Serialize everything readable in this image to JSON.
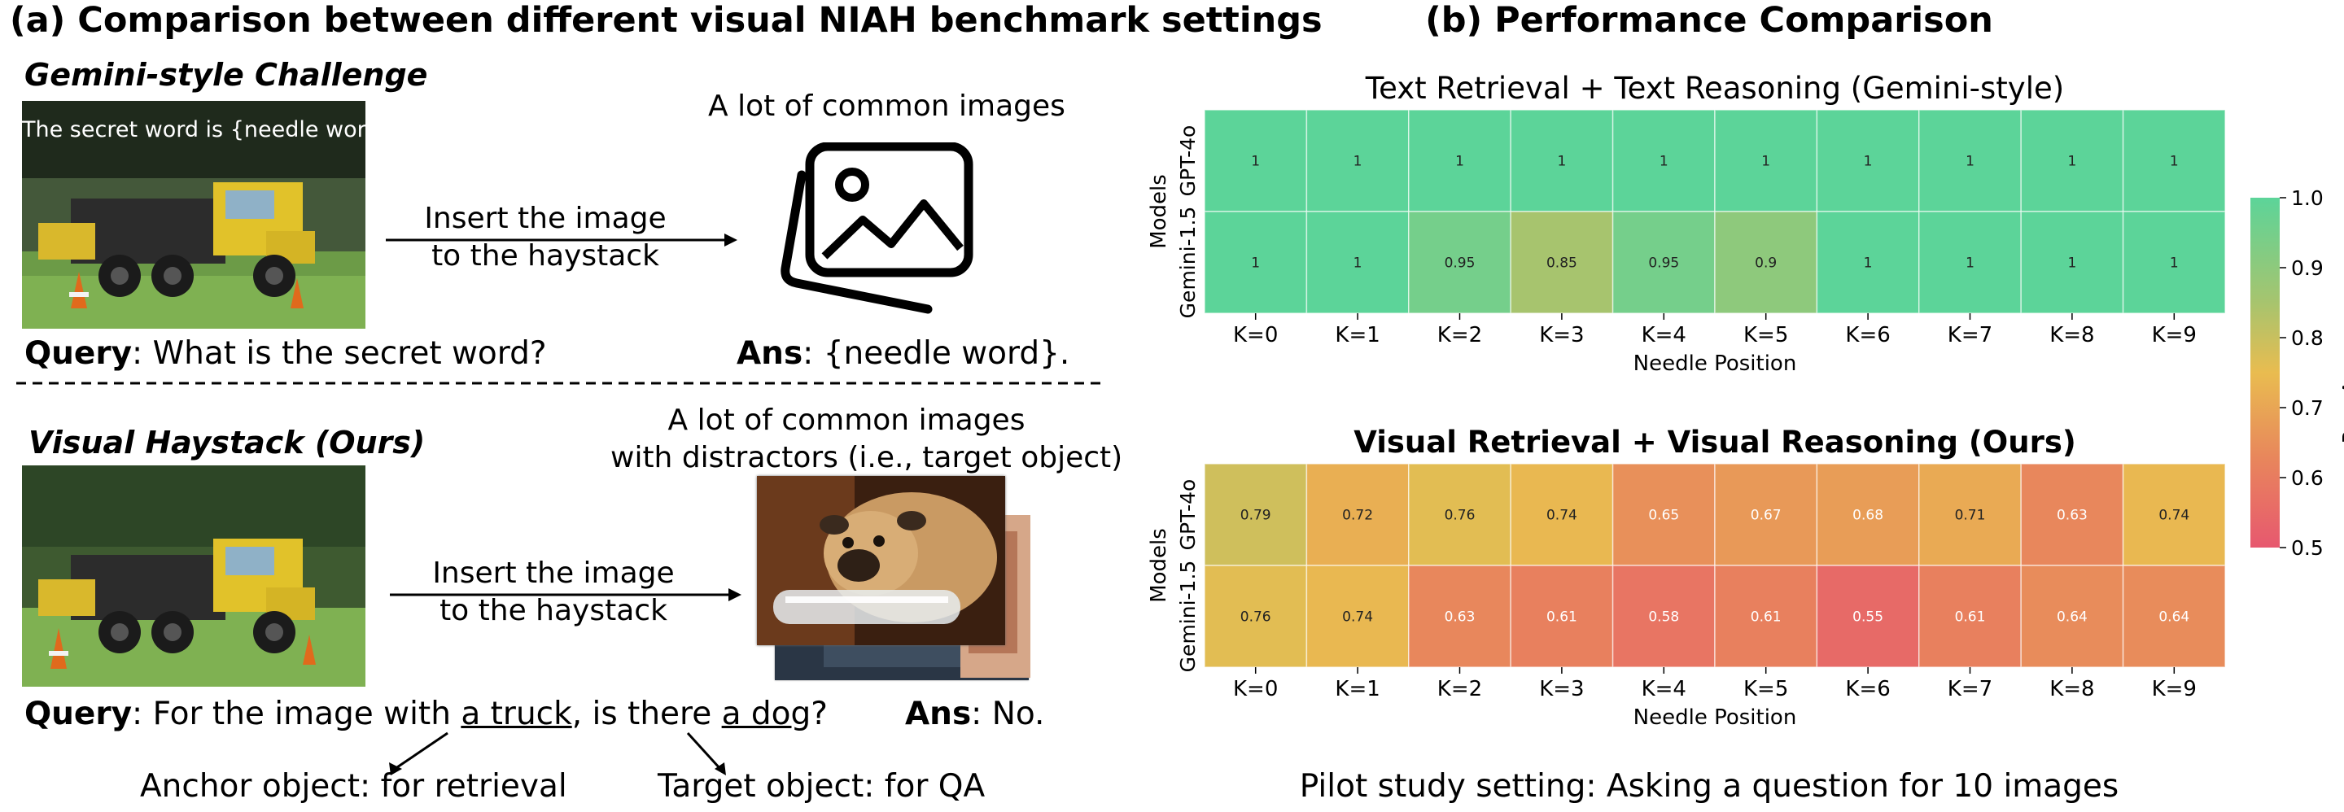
{
  "left_panel": {
    "title": "(a) Comparison between different visual NIAH benchmark settings",
    "gemini": {
      "subtitle": "Gemini-style Challenge",
      "overlay_text": "The secret word is {needle word}.",
      "arrow_label": [
        "Insert the image",
        "to the haystack"
      ],
      "images_label": "A lot of common images",
      "query_bold": "Query",
      "query_text": ": What is the secret word?",
      "ans_bold": "Ans",
      "ans_text": ": {needle word}."
    },
    "visual_haystack": {
      "subtitle": "Visual Haystack (Ours)",
      "images_label": [
        "A lot of common images",
        "with distractors (i.e., target object)"
      ],
      "arrow_label": [
        "Insert the image",
        "to the haystack"
      ],
      "query_bold": "Query",
      "query_text_1": ": For the image with ",
      "query_anchor": "a truck",
      "query_text_2": ", is there ",
      "query_target": "a dog",
      "query_text_3": "?",
      "ans_bold": "Ans",
      "ans_text": ": No.",
      "anchor_note": "Anchor object: for retrieval",
      "target_note": "Target object: for QA"
    }
  },
  "right_panel": {
    "title": "(b) Performance Comparison",
    "footer": "Pilot study setting: Asking a question for 10 images",
    "colorbar": {
      "label": "Raw Accuracy",
      "ticks": [
        "1.0",
        "0.9",
        "0.8",
        "0.7",
        "0.6",
        "0.5"
      ],
      "min": 0.5,
      "max": 1.0
    }
  },
  "chart_data": [
    {
      "type": "heatmap",
      "title": "Text Retrieval + Text Reasoning (Gemini-style)",
      "xlabel": "Needle Position",
      "ylabel": "Models",
      "x": [
        "K=0",
        "K=1",
        "K=2",
        "K=3",
        "K=4",
        "K=5",
        "K=6",
        "K=7",
        "K=8",
        "K=9"
      ],
      "y": [
        "GPT-4o",
        "Gemini-1.5"
      ],
      "values": [
        [
          "1",
          "1",
          "1",
          "1",
          "1",
          "1",
          "1",
          "1",
          "1",
          "1"
        ],
        [
          "1",
          "1",
          "0.95",
          "0.85",
          "0.95",
          "0.9",
          "1",
          "1",
          "1",
          "1"
        ]
      ],
      "zlim": [
        0.5,
        1.0
      ]
    },
    {
      "type": "heatmap",
      "title": "Visual Retrieval + Visual Reasoning (Ours)",
      "xlabel": "Needle Position",
      "ylabel": "Models",
      "x": [
        "K=0",
        "K=1",
        "K=2",
        "K=3",
        "K=4",
        "K=5",
        "K=6",
        "K=7",
        "K=8",
        "K=9"
      ],
      "y": [
        "GPT-4o",
        "Gemini-1.5"
      ],
      "values": [
        [
          "0.79",
          "0.72",
          "0.76",
          "0.74",
          "0.65",
          "0.67",
          "0.68",
          "0.71",
          "0.63",
          "0.74"
        ],
        [
          "0.76",
          "0.74",
          "0.63",
          "0.61",
          "0.58",
          "0.61",
          "0.55",
          "0.61",
          "0.64",
          "0.64"
        ]
      ],
      "zlim": [
        0.5,
        1.0
      ]
    }
  ]
}
